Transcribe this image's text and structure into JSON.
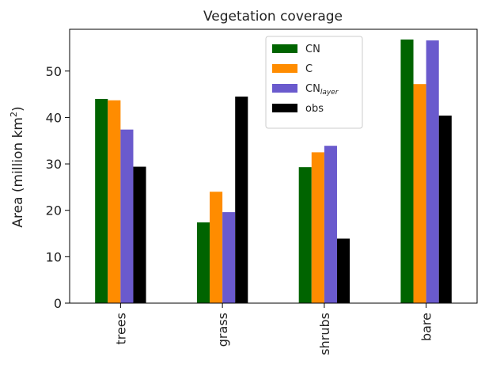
{
  "chart_data": {
    "type": "bar",
    "title": "Vegetation coverage",
    "xlabel": "",
    "ylabel_main": "Area (million km",
    "ylabel_sup": "2",
    "ylabel_end": ")",
    "categories": [
      "trees",
      "grass",
      "shrubs",
      "bare"
    ],
    "series": [
      {
        "name": "CN",
        "name_sub": "",
        "color": "#006400",
        "values": [
          44.0,
          17.4,
          29.3,
          56.8
        ]
      },
      {
        "name": "C",
        "name_sub": "",
        "color": "#ff8c00",
        "values": [
          43.7,
          24.0,
          32.5,
          47.2
        ]
      },
      {
        "name": "CN",
        "name_sub": "layer",
        "color": "#6a5acd",
        "values": [
          37.4,
          19.6,
          33.9,
          56.6
        ]
      },
      {
        "name": "obs",
        "name_sub": "",
        "color": "#000000",
        "values": [
          29.4,
          44.5,
          13.9,
          40.4
        ]
      }
    ],
    "ylim": [
      0,
      59
    ],
    "yticks": [
      0,
      10,
      20,
      30,
      40,
      50
    ],
    "grid": false,
    "legend_position": "top-right"
  }
}
